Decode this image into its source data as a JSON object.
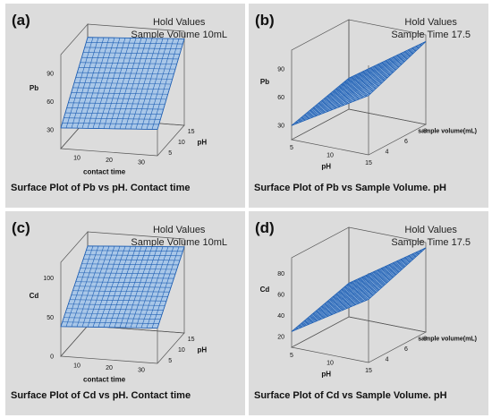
{
  "panels": [
    {
      "letter": "(a)",
      "hold_heading": "Hold Values",
      "hold_value": "Sample Volume 10mL",
      "title": "Surface Plot of Pb vs pH. Contact time"
    },
    {
      "letter": "(b)",
      "hold_heading": "Hold Values",
      "hold_value": "Sample Time 17.5",
      "title": "Surface Plot of Pb vs Sample Volume. pH"
    },
    {
      "letter": "(c)",
      "hold_heading": "Hold Values",
      "hold_value": "Sample Volume 10mL",
      "title": "Surface Plot of Cd vs pH. Contact time"
    },
    {
      "letter": "(d)",
      "hold_heading": "Hold Values",
      "hold_value": "Sample Time 17.5",
      "title": "Surface Plot of Cd vs Sample Volume. pH"
    }
  ],
  "colors": {
    "surface_fill": "#a9c7e8",
    "surface_mesh": "#1f5fb3",
    "box_line": "#555555",
    "panel_bg": "#dcdcdc"
  },
  "chart_data": [
    {
      "type": "surface",
      "xlabel": "contact time",
      "ylabel": "pH",
      "zlabel": "Pb",
      "xticks": [
        "10",
        "20",
        "30"
      ],
      "yticks": [
        "5",
        "10",
        "15"
      ],
      "zticks": [
        "30",
        "60",
        "90"
      ],
      "xlim": [
        5,
        35
      ],
      "ylim": [
        3,
        17
      ],
      "zlim": [
        10,
        110
      ],
      "surface": {
        "z_corners": {
          "x0y0": 32,
          "x1y0": 38,
          "x0y1": 96,
          "x1y1": 102
        }
      },
      "grid_n": 18
    },
    {
      "type": "surface",
      "xlabel": "pH",
      "ylabel": "sample volume(mL)",
      "zlabel": "Pb",
      "xticks": [
        "5",
        "10",
        "15"
      ],
      "yticks": [
        "4",
        "6",
        "8"
      ],
      "zticks": [
        "30",
        "60",
        "90"
      ],
      "xlim": [
        5,
        15
      ],
      "ylim": [
        3,
        9
      ],
      "zlim": [
        15,
        110
      ],
      "surface": {
        "z_corners": {
          "x0y0": 30,
          "x1y0": 78,
          "x0y1": 48,
          "x1y1": 103
        }
      },
      "grid_n": 20
    },
    {
      "type": "surface",
      "xlabel": "contact time",
      "ylabel": "pH",
      "zlabel": "Cd",
      "xticks": [
        "10",
        "20",
        "30"
      ],
      "yticks": [
        "5",
        "10",
        "15"
      ],
      "zticks": [
        "0",
        "50",
        "100"
      ],
      "xlim": [
        5,
        35
      ],
      "ylim": [
        3,
        17
      ],
      "zlim": [
        0,
        120
      ],
      "surface": {
        "z_corners": {
          "x0y0": 38,
          "x1y0": 45,
          "x0y1": 102,
          "x1y1": 110
        }
      },
      "grid_n": 18
    },
    {
      "type": "surface",
      "xlabel": "pH",
      "ylabel": "sample volume(mL)",
      "zlabel": "Cd",
      "xticks": [
        "5",
        "10",
        "15"
      ],
      "yticks": [
        "4",
        "6",
        "8"
      ],
      "zticks": [
        "20",
        "40",
        "60",
        "80"
      ],
      "xlim": [
        5,
        15
      ],
      "ylim": [
        3,
        9
      ],
      "zlim": [
        10,
        95
      ],
      "surface": {
        "z_corners": {
          "x0y0": 25,
          "x1y0": 70,
          "x0y1": 42,
          "x1y1": 90
        }
      },
      "grid_n": 20
    }
  ]
}
